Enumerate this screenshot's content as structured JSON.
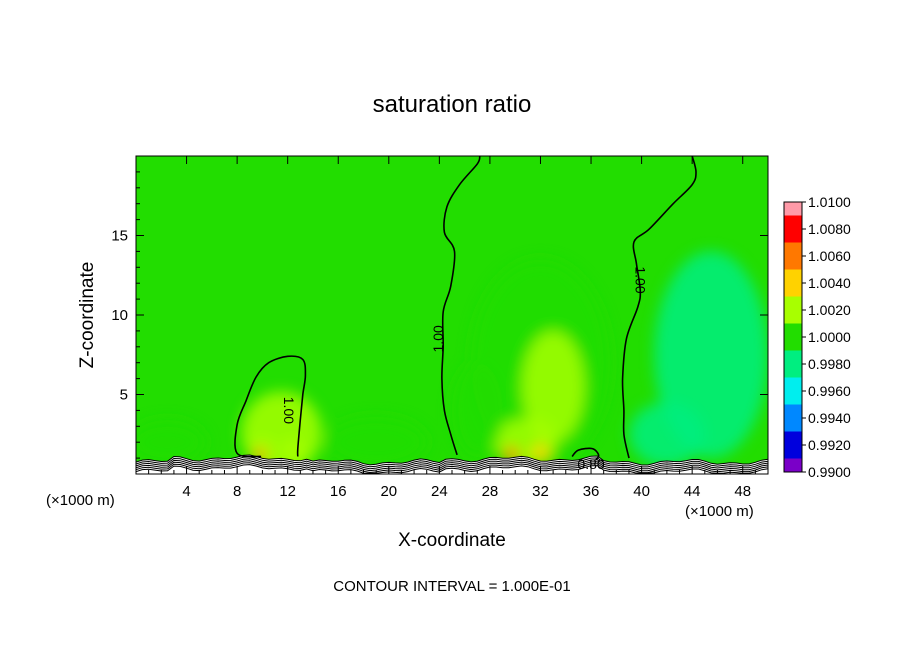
{
  "chart_data": {
    "type": "heatmap",
    "title": "saturation ratio",
    "xlabel": "X-coordinate",
    "ylabel": "Z-coordinate",
    "x_unit_left": "(×1000 m)",
    "x_unit_right": "(×1000 m)",
    "xlim": [
      0,
      50
    ],
    "ylim": [
      0,
      20
    ],
    "x_ticks": [
      4,
      8,
      12,
      16,
      20,
      24,
      28,
      32,
      36,
      40,
      44,
      48
    ],
    "y_ticks": [
      5,
      10,
      15
    ],
    "footer": "CONTOUR INTERVAL = 1.000E-01",
    "contour_labels": [
      "1.00",
      "1.00",
      "1.00",
      "0.80"
    ],
    "colorbar": {
      "levels": [
        "1.0100",
        "1.0080",
        "1.0060",
        "1.0040",
        "1.0020",
        "1.0000",
        "0.9980",
        "0.9960",
        "0.9940",
        "0.9920",
        "0.9900"
      ],
      "colors": [
        "#ff9aa8",
        "#ff0000",
        "#ff7800",
        "#ffd200",
        "#a8ff00",
        "#22dd00",
        "#00ee80",
        "#00eeee",
        "#0088ff",
        "#0000dd",
        "#7a00c8"
      ]
    },
    "background_value": 1.0,
    "contours": [
      {
        "label": "1.00",
        "points": [
          [
            9.9,
            1.1
          ],
          [
            8.0,
            1.3
          ],
          [
            8.0,
            3.1
          ],
          [
            8.7,
            4.6
          ],
          [
            9.5,
            6.1
          ],
          [
            10.5,
            7.0
          ],
          [
            12.0,
            7.4
          ],
          [
            13.2,
            7.2
          ],
          [
            13.4,
            6.2
          ],
          [
            13.2,
            5.0
          ],
          [
            13.0,
            3.4
          ],
          [
            12.8,
            1.6
          ],
          [
            12.8,
            1.1
          ]
        ]
      },
      {
        "label": "1.00",
        "points": [
          [
            25.4,
            1.2
          ],
          [
            24.9,
            2.5
          ],
          [
            24.4,
            4.0
          ],
          [
            24.2,
            6.0
          ],
          [
            24.3,
            8.0
          ],
          [
            24.3,
            10.2
          ],
          [
            24.9,
            11.8
          ],
          [
            25.2,
            14.0
          ],
          [
            24.4,
            15.2
          ],
          [
            24.6,
            16.8
          ],
          [
            25.6,
            18.2
          ],
          [
            27.0,
            19.5
          ],
          [
            27.2,
            20.0
          ]
        ]
      },
      {
        "label": "1.00",
        "points": [
          [
            39.0,
            1.0
          ],
          [
            38.6,
            2.5
          ],
          [
            38.6,
            4.0
          ],
          [
            38.5,
            6.0
          ],
          [
            38.8,
            8.5
          ],
          [
            39.7,
            10.5
          ],
          [
            39.9,
            11.5
          ],
          [
            39.6,
            13.2
          ],
          [
            39.4,
            14.6
          ],
          [
            40.6,
            15.4
          ],
          [
            42.5,
            17.0
          ],
          [
            44.0,
            18.2
          ],
          [
            44.3,
            19.0
          ],
          [
            44.0,
            20.0
          ]
        ]
      },
      {
        "label": "0.80",
        "points": [
          [
            34.5,
            1.1
          ],
          [
            35.0,
            1.5
          ],
          [
            36.1,
            1.6
          ],
          [
            36.6,
            1.2
          ],
          [
            36.4,
            0.9
          ]
        ]
      }
    ],
    "blobs": [
      {
        "x": 11.5,
        "z": 2.6,
        "rx": 3.2,
        "rz": 2.6,
        "value": 1.0012
      },
      {
        "x": 10.0,
        "z": 1.5,
        "rx": 1.0,
        "rz": 0.8,
        "value": 1.003
      },
      {
        "x": 12.4,
        "z": 1.5,
        "rx": 0.9,
        "rz": 0.7,
        "value": 1.003
      },
      {
        "x": 9.8,
        "z": 1.2,
        "rx": 0.5,
        "rz": 0.4,
        "value": 1.0055
      },
      {
        "x": 32.0,
        "z": 7.0,
        "rx": 5.5,
        "rz": 6.5,
        "value": 1.0008
      },
      {
        "x": 33.0,
        "z": 5.5,
        "rx": 2.5,
        "rz": 3.5,
        "value": 1.0018
      },
      {
        "x": 30.8,
        "z": 2.0,
        "rx": 2.5,
        "rz": 1.5,
        "value": 1.0022
      },
      {
        "x": 29.7,
        "z": 1.2,
        "rx": 0.6,
        "rz": 0.5,
        "value": 1.007
      },
      {
        "x": 32.0,
        "z": 1.3,
        "rx": 0.7,
        "rz": 0.6,
        "value": 1.004
      },
      {
        "x": 45.5,
        "z": 7.5,
        "rx": 4.5,
        "rz": 6.5,
        "value": 0.9985
      },
      {
        "x": 42.0,
        "z": 2.5,
        "rx": 3.0,
        "rz": 2.0,
        "value": 0.9988
      },
      {
        "x": 19.0,
        "z": 2.0,
        "rx": 4.0,
        "rz": 1.6,
        "value": 0.999
      },
      {
        "x": 2.5,
        "z": 2.0,
        "rx": 3.0,
        "rz": 1.4,
        "value": 0.999
      },
      {
        "x": 27.0,
        "z": 4.0,
        "rx": 2.0,
        "rz": 3.0,
        "value": 1.0004
      }
    ]
  }
}
